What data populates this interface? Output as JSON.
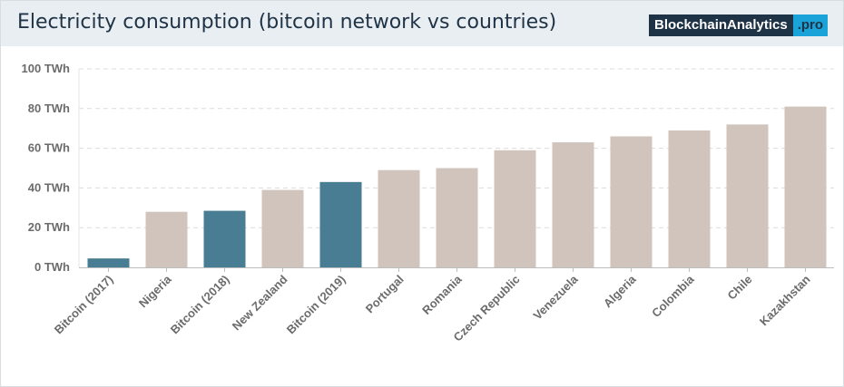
{
  "header": {
    "title": "Electricity consumption (bitcoin network vs countries)",
    "brand_name": "BlockchainAnalytics",
    "brand_tld": ".pro"
  },
  "colors": {
    "bitcoin": "#487d93",
    "country": "#d0c4bc",
    "grid": "#dcdcdc",
    "axis": "#bdbdbd"
  },
  "chart_data": {
    "type": "bar",
    "title": "Electricity consumption (bitcoin network vs countries)",
    "xlabel": "",
    "ylabel": "",
    "unit": "TWh",
    "ylim": [
      0,
      100
    ],
    "yticks": [
      0,
      20,
      40,
      60,
      80,
      100
    ],
    "ytick_labels": [
      "0 TWh",
      "20 TWh",
      "40 TWh",
      "60 TWh",
      "80 TWh",
      "100 TWh"
    ],
    "grid": true,
    "categories": [
      "Bitcoin (2017)",
      "Nigeria",
      "Bitcoin (2018)",
      "New Zealand",
      "Bitcoin (2019)",
      "Portugal",
      "Romania",
      "Czech Republic",
      "Venezuela",
      "Algeria",
      "Colombia",
      "Chile",
      "Kazakhstan"
    ],
    "values": [
      4.5,
      28,
      28.5,
      39,
      43,
      49,
      50,
      59,
      63,
      66,
      69,
      72,
      81
    ],
    "highlight": [
      true,
      false,
      true,
      false,
      true,
      false,
      false,
      false,
      false,
      false,
      false,
      false,
      false
    ]
  }
}
